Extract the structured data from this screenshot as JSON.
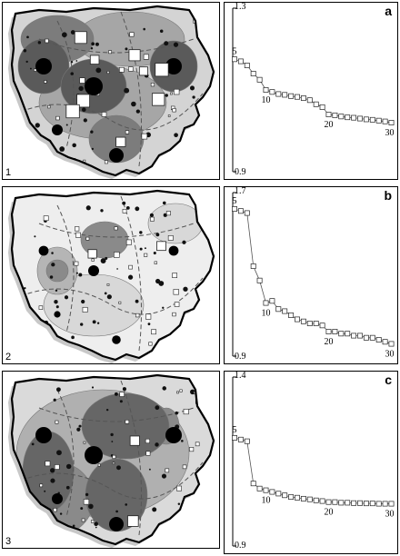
{
  "figure": {
    "rows": [
      {
        "number": "1",
        "letter": "a",
        "y_top_label": "1.3",
        "y_bottom_label": "0.9",
        "map_tone": "dark",
        "big_squares": 9
      },
      {
        "number": "2",
        "letter": "b",
        "y_top_label": "1.7",
        "y_bottom_label": "0.9",
        "map_tone": "light",
        "big_squares": 2
      },
      {
        "number": "3",
        "letter": "c",
        "y_top_label": "1.4",
        "y_bottom_label": "0.9",
        "map_tone": "medium",
        "big_squares": 2
      }
    ]
  },
  "chart_data": [
    {
      "type": "line",
      "title": "a",
      "ylim": [
        0.9,
        1.3
      ],
      "x_tick_labels": [
        "5",
        "10",
        "20",
        "30"
      ],
      "x": [
        5,
        6,
        7,
        8,
        9,
        10,
        11,
        12,
        13,
        14,
        15,
        16,
        17,
        18,
        19,
        20,
        21,
        22,
        23,
        24,
        25,
        26,
        27,
        28,
        29,
        30
      ],
      "values": [
        1.175,
        1.17,
        1.16,
        1.14,
        1.125,
        1.1,
        1.095,
        1.09,
        1.088,
        1.085,
        1.083,
        1.08,
        1.075,
        1.065,
        1.058,
        1.04,
        1.038,
        1.035,
        1.033,
        1.032,
        1.03,
        1.028,
        1.027,
        1.025,
        1.023,
        1.02
      ],
      "markers": "open-square"
    },
    {
      "type": "line",
      "title": "b",
      "ylim": [
        0.9,
        1.7
      ],
      "x_tick_labels": [
        "5",
        "10",
        "20",
        "30"
      ],
      "x": [
        5,
        6,
        7,
        8,
        9,
        10,
        11,
        12,
        13,
        14,
        15,
        16,
        17,
        18,
        19,
        20,
        21,
        22,
        23,
        24,
        25,
        26,
        27,
        28,
        29,
        30
      ],
      "values": [
        1.62,
        1.61,
        1.6,
        1.34,
        1.27,
        1.16,
        1.17,
        1.13,
        1.12,
        1.1,
        1.08,
        1.07,
        1.06,
        1.06,
        1.05,
        1.02,
        1.02,
        1.01,
        1.01,
        1.0,
        1.0,
        0.99,
        0.99,
        0.98,
        0.97,
        0.96
      ],
      "markers": "open-square"
    },
    {
      "type": "line",
      "title": "c",
      "ylim": [
        0.9,
        1.4
      ],
      "x_tick_labels": [
        "5",
        "10",
        "20",
        "30"
      ],
      "x": [
        5,
        6,
        7,
        8,
        9,
        10,
        11,
        12,
        13,
        14,
        15,
        16,
        17,
        18,
        19,
        20,
        21,
        22,
        23,
        24,
        25,
        26,
        27,
        28,
        29,
        30
      ],
      "values": [
        1.22,
        1.215,
        1.21,
        1.085,
        1.07,
        1.065,
        1.06,
        1.055,
        1.05,
        1.045,
        1.043,
        1.04,
        1.038,
        1.035,
        1.033,
        1.03,
        1.03,
        1.028,
        1.028,
        1.027,
        1.027,
        1.026,
        1.026,
        1.025,
        1.025,
        1.025
      ],
      "markers": "open-square"
    }
  ]
}
